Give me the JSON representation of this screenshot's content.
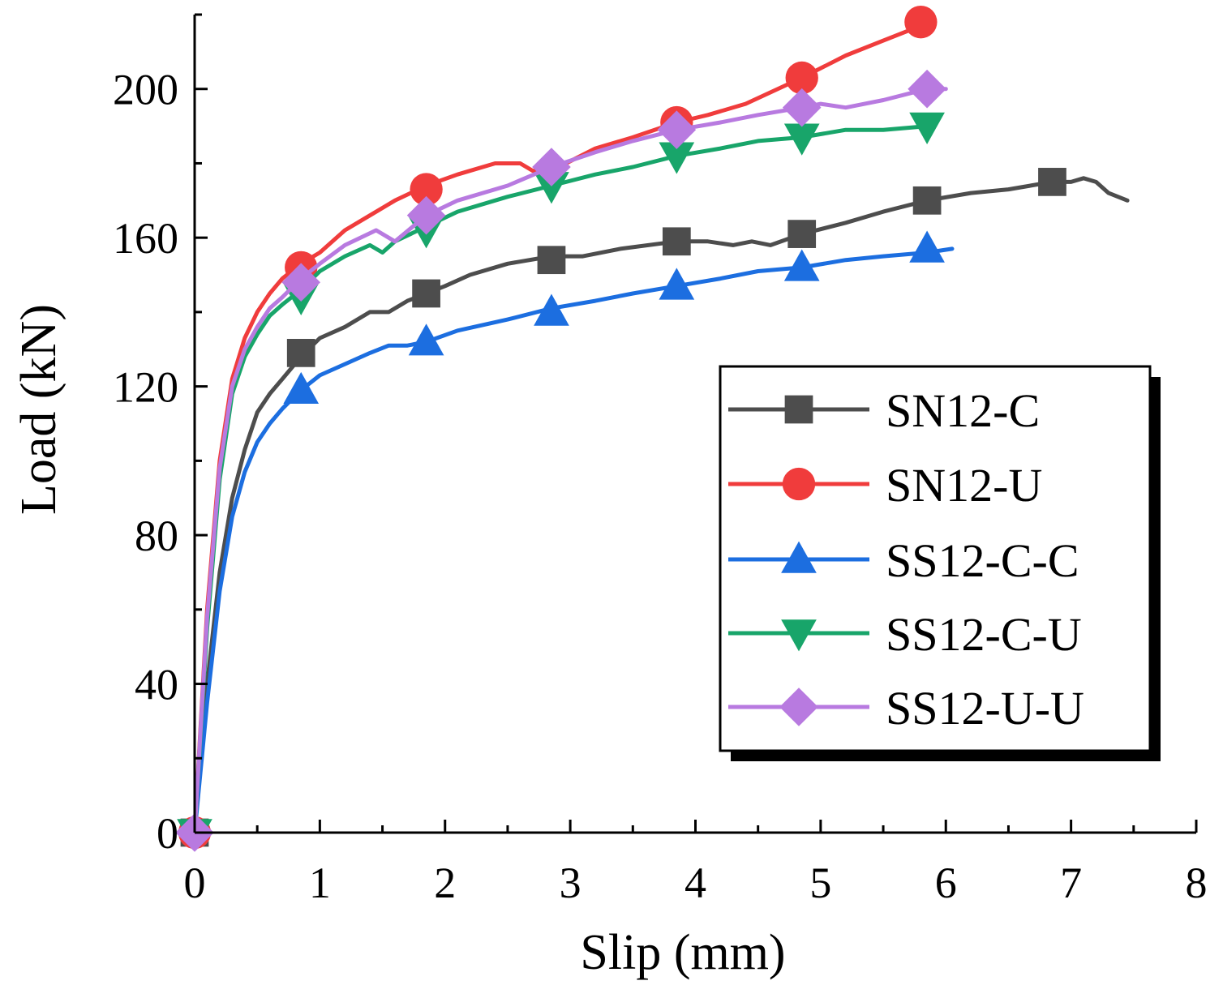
{
  "chart_data": {
    "type": "line",
    "title": "",
    "xlabel": "Slip (mm)",
    "ylabel": "Load (kN)",
    "xlim": [
      0,
      8
    ],
    "ylim": [
      0,
      220
    ],
    "xticks": [
      "0",
      "1",
      "2",
      "3",
      "4",
      "5",
      "6",
      "7",
      "8"
    ],
    "yticks": [
      "0",
      "40",
      "80",
      "120",
      "160",
      "200"
    ],
    "grid": false,
    "legend_position": "right",
    "series": [
      {
        "name": "SN12-C",
        "color": "#4d4d4d",
        "marker": "square",
        "x": [
          0,
          0.1,
          0.2,
          0.3,
          0.4,
          0.5,
          0.6,
          0.7,
          0.85,
          1.0,
          1.2,
          1.4,
          1.55,
          1.7,
          1.85,
          2.0,
          2.2,
          2.5,
          2.85,
          3.1,
          3.4,
          3.85,
          4.1,
          4.3,
          4.45,
          4.6,
          4.85,
          5.2,
          5.5,
          5.85,
          6.2,
          6.5,
          6.85,
          7.0,
          7.1,
          7.2,
          7.3,
          7.45
        ],
        "y": [
          0,
          40,
          70,
          90,
          103,
          113,
          118,
          122,
          128,
          133,
          136,
          140,
          140,
          143,
          145,
          147,
          150,
          153,
          155,
          155,
          157,
          159,
          159,
          158,
          159,
          158,
          161,
          164,
          167,
          170,
          172,
          173,
          175,
          175,
          176,
          175,
          172,
          170
        ],
        "marker_x": [
          0,
          0.85,
          1.85,
          2.85,
          3.85,
          4.85,
          5.85,
          6.85
        ],
        "marker_y": [
          0,
          129,
          145,
          154,
          159,
          161,
          170,
          175
        ]
      },
      {
        "name": "SN12-U",
        "color": "#f03c3c",
        "marker": "circle",
        "x": [
          0,
          0.1,
          0.2,
          0.3,
          0.4,
          0.5,
          0.6,
          0.7,
          0.85,
          1.0,
          1.2,
          1.4,
          1.6,
          1.85,
          2.1,
          2.4,
          2.6,
          2.7,
          2.85,
          3.2,
          3.5,
          3.85,
          4.1,
          4.4,
          4.85,
          5.2,
          5.5,
          5.8
        ],
        "y": [
          0,
          60,
          100,
          122,
          133,
          140,
          145,
          149,
          153,
          156,
          162,
          166,
          170,
          174,
          177,
          180,
          180,
          178,
          178,
          184,
          187,
          191,
          193,
          196,
          203,
          209,
          213,
          217
        ],
        "marker_x": [
          0,
          0.85,
          1.85,
          3.85,
          4.85,
          5.8
        ],
        "marker_y": [
          0,
          152,
          173,
          191,
          203,
          218
        ]
      },
      {
        "name": "SS12-C-C",
        "color": "#1c6ee0",
        "marker": "triangle-up",
        "x": [
          0,
          0.1,
          0.2,
          0.3,
          0.4,
          0.5,
          0.6,
          0.7,
          0.85,
          1.0,
          1.2,
          1.4,
          1.55,
          1.7,
          1.85,
          2.1,
          2.5,
          2.85,
          3.2,
          3.5,
          3.85,
          4.2,
          4.5,
          4.85,
          5.2,
          5.5,
          5.85,
          6.05
        ],
        "y": [
          0,
          35,
          65,
          85,
          97,
          105,
          110,
          114,
          119,
          123,
          126,
          129,
          131,
          131,
          132,
          135,
          138,
          141,
          143,
          145,
          147,
          149,
          151,
          152,
          154,
          155,
          156,
          157
        ],
        "marker_x": [
          0.85,
          1.85,
          2.85,
          3.85,
          4.85,
          5.85
        ],
        "marker_y": [
          119,
          132,
          140,
          147,
          152,
          157
        ]
      },
      {
        "name": "SS12-C-U",
        "color": "#18a56a",
        "marker": "triangle-down",
        "x": [
          0,
          0.1,
          0.2,
          0.3,
          0.4,
          0.5,
          0.6,
          0.7,
          0.85,
          1.0,
          1.2,
          1.4,
          1.5,
          1.6,
          1.85,
          2.1,
          2.5,
          2.85,
          3.2,
          3.5,
          3.85,
          4.2,
          4.5,
          4.85,
          5.2,
          5.5,
          5.85
        ],
        "y": [
          0,
          55,
          95,
          118,
          128,
          134,
          139,
          142,
          146,
          151,
          155,
          158,
          156,
          159,
          163,
          167,
          171,
          174,
          177,
          179,
          182,
          184,
          186,
          187,
          189,
          189,
          190
        ],
        "marker_x": [
          0,
          0.85,
          1.85,
          2.85,
          3.85,
          4.85,
          5.85
        ],
        "marker_y": [
          0,
          144,
          162,
          174,
          182,
          187,
          190
        ]
      },
      {
        "name": "SS12-U-U",
        "color": "#b87ae0",
        "marker": "diamond",
        "x": [
          0,
          0.1,
          0.2,
          0.3,
          0.4,
          0.5,
          0.6,
          0.7,
          0.85,
          1.0,
          1.2,
          1.45,
          1.6,
          1.85,
          2.1,
          2.5,
          2.85,
          3.2,
          3.5,
          3.85,
          4.2,
          4.5,
          4.85,
          5.0,
          5.2,
          5.5,
          5.85,
          6.0
        ],
        "y": [
          0,
          58,
          98,
          120,
          130,
          136,
          141,
          144,
          149,
          153,
          158,
          162,
          159,
          166,
          170,
          174,
          179,
          183,
          186,
          189,
          191,
          193,
          195,
          196,
          195,
          197,
          200,
          200
        ],
        "marker_x": [
          0,
          0.85,
          1.85,
          2.85,
          3.85,
          4.85,
          5.85
        ],
        "marker_y": [
          0,
          148,
          166,
          179,
          189,
          195,
          200
        ]
      }
    ]
  }
}
